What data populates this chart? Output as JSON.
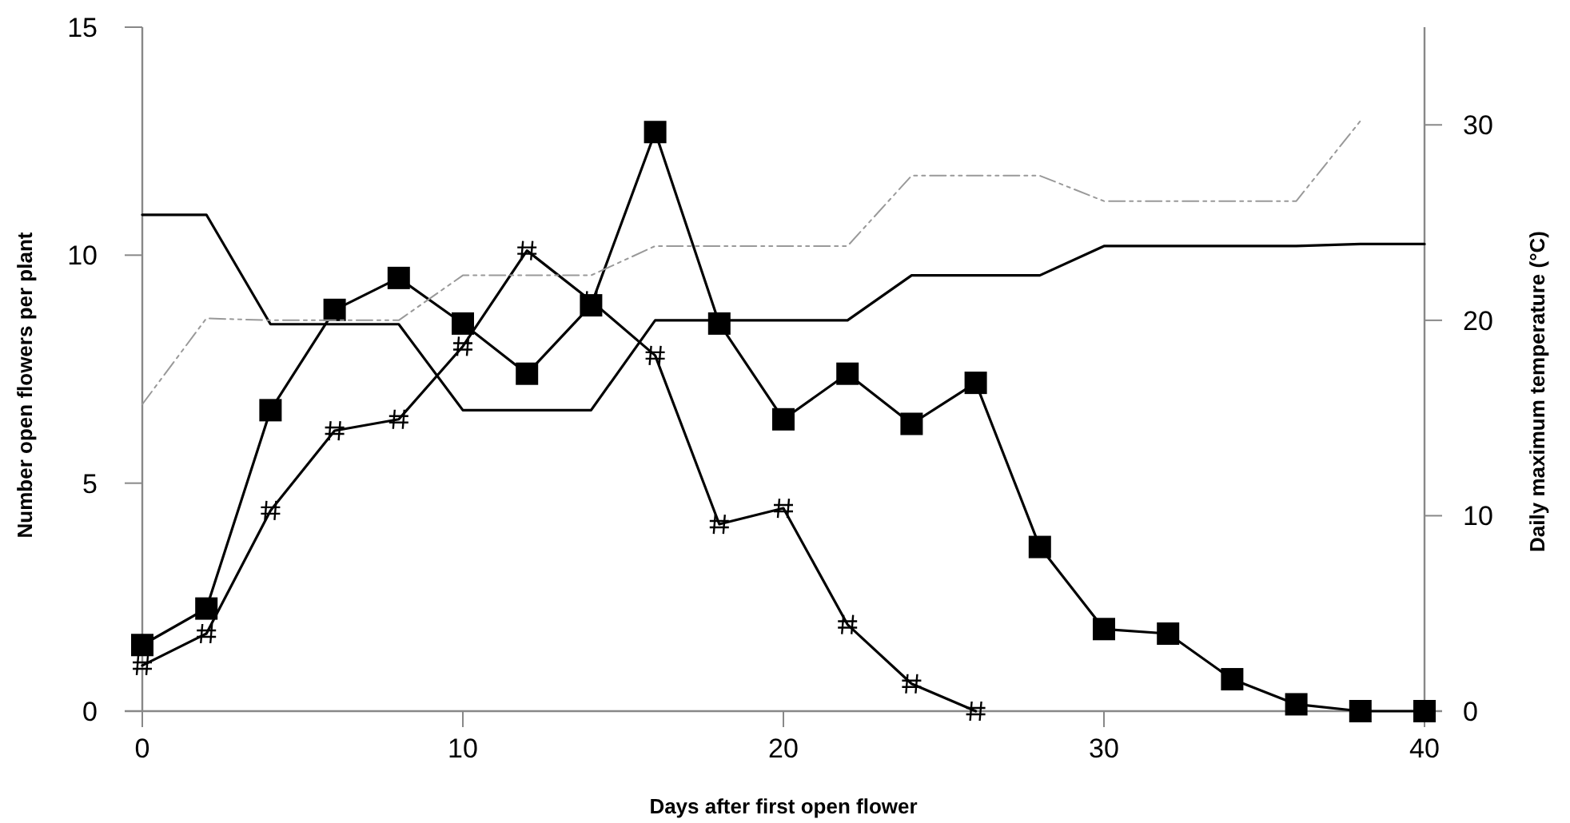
{
  "chart_data": {
    "type": "line",
    "xlabel": "Days after first open flower",
    "ylabel": "Number open flowers per plant",
    "y2label": "Daily maximum temperature (°C)",
    "xlim": [
      0,
      40
    ],
    "xticks": [
      0,
      10,
      20,
      30,
      40
    ],
    "ylim": [
      0,
      15
    ],
    "yticks": [
      0,
      5,
      10,
      15
    ],
    "y2lim": [
      0,
      35
    ],
    "y2ticks": [
      0,
      10,
      20,
      30
    ],
    "grid": false,
    "series": [
      {
        "color": "#000000",
        "marker": "square",
        "line_style": "solid",
        "x": [
          0,
          2,
          4,
          6,
          8,
          10,
          12,
          14,
          16,
          18,
          20,
          22,
          24,
          26,
          28,
          30,
          32,
          34,
          36,
          38,
          40
        ],
        "values": [
          1.45,
          2.25,
          6.6,
          8.8,
          9.5,
          8.5,
          7.4,
          8.9,
          12.7,
          8.5,
          6.4,
          7.4,
          6.3,
          7.2,
          3.6,
          1.8,
          1.7,
          0.7,
          0.15,
          0,
          0
        ]
      },
      {
        "color": "#000000",
        "marker": "cross",
        "line_style": "solid",
        "x": [
          0,
          2,
          4,
          6,
          8,
          10,
          12,
          14,
          16,
          18,
          20,
          22,
          24,
          26
        ],
        "values": [
          1.0,
          1.7,
          4.4,
          6.15,
          6.4,
          8.0,
          10.1,
          9.0,
          7.8,
          4.1,
          4.45,
          1.9,
          0.6,
          0
        ]
      },
      {
        "color": "#000000",
        "marker": "none",
        "line_style": "solid",
        "axis": "y2",
        "x": [
          0,
          2,
          4,
          6,
          8,
          10,
          12,
          14,
          16,
          18,
          20,
          22,
          24,
          26,
          28,
          30,
          32,
          34,
          36,
          38,
          40
        ],
        "values": [
          25.4,
          25.4,
          19.8,
          19.8,
          19.8,
          15.4,
          15.4,
          15.4,
          20,
          20,
          20,
          20,
          22.3,
          22.3,
          22.3,
          23.8,
          23.8,
          23.8,
          23.8,
          23.9,
          23.9
        ]
      },
      {
        "color": "#999999",
        "marker": "none",
        "line_style": "dotted",
        "axis": "y2",
        "x": [
          0,
          2,
          4,
          6,
          8,
          10,
          12,
          14,
          16,
          18,
          20,
          22,
          24,
          26,
          28,
          30,
          32,
          34,
          36,
          38
        ],
        "values": [
          15.7,
          20.1,
          20,
          20,
          20,
          22.3,
          22.3,
          22.3,
          23.8,
          23.8,
          23.8,
          23.8,
          27.4,
          27.4,
          27.4,
          26.1,
          26.1,
          26.1,
          26.1,
          30.2
        ]
      }
    ]
  }
}
